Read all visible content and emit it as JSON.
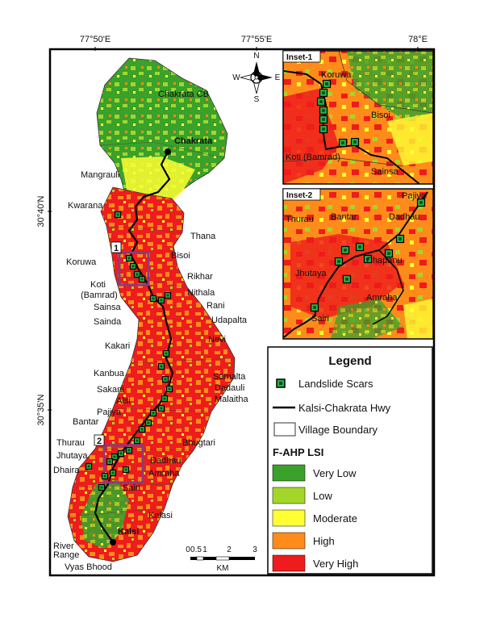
{
  "colors": {
    "very_low": "#3aa12a",
    "low": "#a4d62a",
    "moderate": "#ffff33",
    "high": "#ff8c1a",
    "very_high": "#ee1c1c",
    "scar_fill": "#22b14c",
    "inset_frame": "#8b3a7e"
  },
  "coords": {
    "top": [
      "77°50'E",
      "77°55'E",
      "78°E"
    ],
    "left": [
      "30°40'N",
      "30°35'N"
    ]
  },
  "compass": {
    "n": "N",
    "s": "S",
    "e": "E",
    "w": "W"
  },
  "towns": {
    "chakrata": "Chakrata",
    "kalsi": "Kalsi"
  },
  "map_labels": {
    "chakrata_cb": "Chakrata CB",
    "mangrauli": "Mangrauli",
    "kwarana": "Kwarana",
    "thana": "Thana",
    "koruwa": "Koruwa",
    "bisoi": "Bisoi",
    "rikhar": "Rikhar",
    "koti_1": "Koti",
    "koti_2": "(Bamrad)",
    "nithala": "Nithala",
    "rani": "Rani",
    "sainsa": "Sainsa",
    "sainda": "Sainda",
    "udapalta": "Udapalta",
    "nevi": "Nevi",
    "kakari": "Kakari",
    "kanbua": "Kanbua",
    "samalta": "Samalta",
    "sakani": "Sakani",
    "dadauli": "Dadauli",
    "alsi": "Alsi",
    "malaitha": "Malaitha",
    "pajiya": "Pajiya",
    "bantar": "Bantar",
    "thurau": "Thurau",
    "bhugtari": "Bhugtari",
    "jhutaya": "Jhutaya",
    "dadhau": "Dadhau",
    "dhaira": "Dhaira",
    "amraha": "Amraha",
    "sairi": "Sairi",
    "kalasi": "Kalasi",
    "river_1": "River",
    "river_2": "Range",
    "vyas_bhood": "Vyas Bhood",
    "box1": "1",
    "box2": "2"
  },
  "inset1": {
    "title": "Inset-1",
    "labels": {
      "koruwa": "Koruwa",
      "bisoi": "Bisoi",
      "koti": "Koti (Bamrad)",
      "sainsa": "Sainsa"
    }
  },
  "inset2": {
    "title": "Inset-2",
    "labels": {
      "pajiya": "Pajiya",
      "thurau": "Thurau",
      "bantar": "Bantar",
      "dadhau": "Dadhau",
      "jhutaya": "Jhutaya",
      "chapanu": "Chapanu",
      "amraha": "Amraha",
      "sairi": "Sairi"
    }
  },
  "legend": {
    "title": "Legend",
    "scars": "Landslide Scars",
    "hwy": "Kalsi-Chakrata Hwy",
    "village": "Village Boundary",
    "lsi_title": "F-AHP LSI",
    "classes": [
      "Very Low",
      "Low",
      "Moderate",
      "High",
      "Very High"
    ]
  },
  "scalebar": {
    "ticks": [
      "0",
      "0.5",
      "1",
      "2",
      "3"
    ],
    "unit": "KM"
  }
}
